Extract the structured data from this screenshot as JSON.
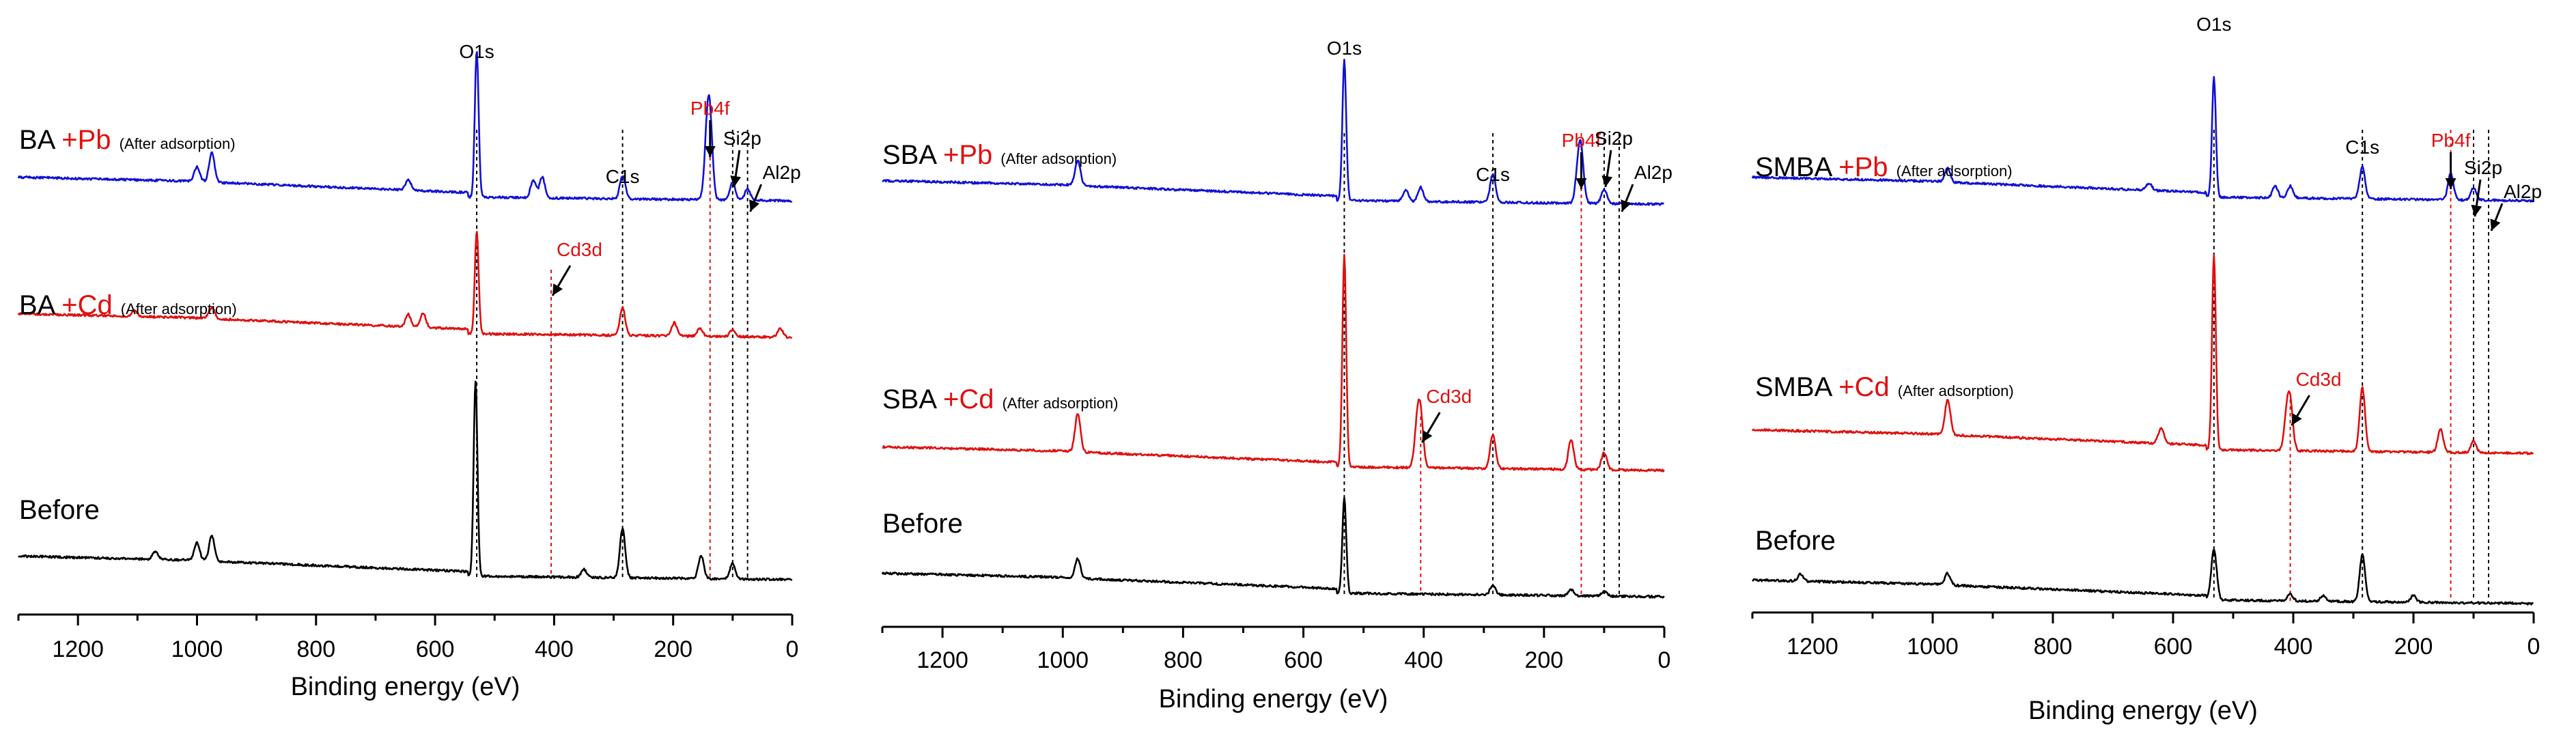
{
  "colors": {
    "blue": "#1010d8",
    "red": "#e01010",
    "black": "#000000",
    "redText": "#e01010"
  },
  "chart_data": [
    {
      "type": "line",
      "title": "",
      "xlabel": "Binding energy (eV)",
      "ylabel": "",
      "xlim": [
        1300,
        0
      ],
      "xticks": [
        1200,
        1000,
        800,
        600,
        400,
        200,
        0
      ],
      "series": [
        {
          "name": "BA +Pb (After adsorption)",
          "prefix": "BA",
          "metal": "+Pb",
          "note": "(After adsorption)",
          "color": "blue",
          "peaks": [
            {
              "pos": 530,
              "amp": 1.0
            },
            {
              "pos": 285,
              "amp": 0.16
            },
            {
              "pos": 138,
              "amp": 0.45
            },
            {
              "pos": 143,
              "amp": 0.38
            },
            {
              "pos": 100,
              "amp": 0.12
            },
            {
              "pos": 75,
              "amp": 0.08
            },
            {
              "pos": 420,
              "amp": 0.14
            },
            {
              "pos": 435,
              "amp": 0.12
            },
            {
              "pos": 975,
              "amp": 0.2
            },
            {
              "pos": 1000,
              "amp": 0.1
            },
            {
              "pos": 645,
              "amp": 0.07
            }
          ]
        },
        {
          "name": "BA +Cd (After adsorption)",
          "prefix": "BA",
          "metal": "+Cd",
          "note": "(After adsorption)",
          "color": "red",
          "peaks": [
            {
              "pos": 530,
              "amp": 1.0
            },
            {
              "pos": 285,
              "amp": 0.27
            },
            {
              "pos": 198,
              "amp": 0.13
            },
            {
              "pos": 155,
              "amp": 0.08
            },
            {
              "pos": 100,
              "amp": 0.07
            },
            {
              "pos": 620,
              "amp": 0.14
            },
            {
              "pos": 645,
              "amp": 0.12
            },
            {
              "pos": 975,
              "amp": 0.11
            },
            {
              "pos": 1105,
              "amp": 0.06
            },
            {
              "pos": 20,
              "amp": 0.08
            }
          ]
        },
        {
          "name": "Before",
          "prefix": "Before",
          "metal": "",
          "note": "",
          "color": "black",
          "peaks": [
            {
              "pos": 532,
              "amp": 1.0
            },
            {
              "pos": 285,
              "amp": 0.25
            },
            {
              "pos": 153,
              "amp": 0.12
            },
            {
              "pos": 100,
              "amp": 0.08
            },
            {
              "pos": 975,
              "amp": 0.13
            },
            {
              "pos": 1000,
              "amp": 0.09
            },
            {
              "pos": 1070,
              "amp": 0.04
            },
            {
              "pos": 350,
              "amp": 0.04
            }
          ]
        }
      ],
      "annotations": [
        {
          "label": "O1s",
          "pos": 530,
          "color": "black"
        },
        {
          "label": "C1s",
          "pos": 285,
          "color": "black"
        },
        {
          "label": "Pb4f",
          "pos": 138,
          "color": "red"
        },
        {
          "label": "Si2p",
          "pos": 100,
          "color": "black"
        },
        {
          "label": "Al2p",
          "pos": 75,
          "color": "black"
        },
        {
          "label": "Cd3d",
          "pos": 405,
          "color": "red"
        }
      ]
    },
    {
      "type": "line",
      "title": "",
      "xlabel": "Binding energy (eV)",
      "ylabel": "",
      "xlim": [
        1300,
        0
      ],
      "xticks": [
        1200,
        1000,
        800,
        600,
        400,
        200,
        0
      ],
      "series": [
        {
          "name": "SBA +Pb (After adsorption)",
          "prefix": "SBA",
          "metal": "+Pb",
          "note": "(After adsorption)",
          "color": "blue",
          "peaks": [
            {
              "pos": 532,
              "amp": 1.0
            },
            {
              "pos": 285,
              "amp": 0.2
            },
            {
              "pos": 138,
              "amp": 0.3
            },
            {
              "pos": 143,
              "amp": 0.22
            },
            {
              "pos": 100,
              "amp": 0.1
            },
            {
              "pos": 975,
              "amp": 0.18
            },
            {
              "pos": 430,
              "amp": 0.08
            },
            {
              "pos": 405,
              "amp": 0.1
            }
          ]
        },
        {
          "name": "SBA +Cd (After adsorption)",
          "prefix": "SBA",
          "metal": "+Cd",
          "note": "(After adsorption)",
          "color": "red",
          "peaks": [
            {
              "pos": 532,
              "amp": 1.0
            },
            {
              "pos": 405,
              "amp": 0.22
            },
            {
              "pos": 411,
              "amp": 0.18
            },
            {
              "pos": 285,
              "amp": 0.16
            },
            {
              "pos": 155,
              "amp": 0.14
            },
            {
              "pos": 100,
              "amp": 0.08
            },
            {
              "pos": 975,
              "amp": 0.18
            }
          ]
        },
        {
          "name": "Before",
          "prefix": "Before",
          "metal": "",
          "note": "",
          "color": "black",
          "peaks": [
            {
              "pos": 532,
              "amp": 1.0
            },
            {
              "pos": 285,
              "amp": 0.1
            },
            {
              "pos": 155,
              "amp": 0.06
            },
            {
              "pos": 100,
              "amp": 0.05
            },
            {
              "pos": 975,
              "amp": 0.2
            }
          ]
        }
      ],
      "annotations": [
        {
          "label": "O1s",
          "pos": 532,
          "color": "black"
        },
        {
          "label": "C1s",
          "pos": 285,
          "color": "black"
        },
        {
          "label": "Pb4f",
          "pos": 138,
          "color": "red"
        },
        {
          "label": "Si2p",
          "pos": 100,
          "color": "black"
        },
        {
          "label": "Al2p",
          "pos": 75,
          "color": "black"
        },
        {
          "label": "Cd3d",
          "pos": 405,
          "color": "red"
        }
      ]
    },
    {
      "type": "line",
      "title": "",
      "xlabel": "Binding energy (eV)",
      "ylabel": "",
      "xlim": [
        1300,
        0
      ],
      "xticks": [
        1200,
        1000,
        800,
        600,
        400,
        200,
        0
      ],
      "series": [
        {
          "name": "SMBA +Pb (After adsorption)",
          "prefix": "SMBA",
          "metal": "+Pb",
          "note": "(After adsorption)",
          "color": "blue",
          "peaks": [
            {
              "pos": 532,
              "amp": 1.0
            },
            {
              "pos": 285,
              "amp": 0.27
            },
            {
              "pos": 138,
              "amp": 0.22
            },
            {
              "pos": 100,
              "amp": 0.1
            },
            {
              "pos": 405,
              "amp": 0.1
            },
            {
              "pos": 430,
              "amp": 0.1
            },
            {
              "pos": 975,
              "amp": 0.12
            },
            {
              "pos": 640,
              "amp": 0.06
            }
          ]
        },
        {
          "name": "SMBA +Cd (After adsorption)",
          "prefix": "SMBA",
          "metal": "+Cd",
          "note": "(After adsorption)",
          "color": "red",
          "peaks": [
            {
              "pos": 532,
              "amp": 1.0
            },
            {
              "pos": 405,
              "amp": 0.22
            },
            {
              "pos": 411,
              "amp": 0.16
            },
            {
              "pos": 285,
              "amp": 0.33
            },
            {
              "pos": 155,
              "amp": 0.12
            },
            {
              "pos": 100,
              "amp": 0.06
            },
            {
              "pos": 975,
              "amp": 0.18
            },
            {
              "pos": 620,
              "amp": 0.08
            }
          ]
        },
        {
          "name": "Before",
          "prefix": "Before",
          "metal": "",
          "note": "",
          "color": "black",
          "peaks": [
            {
              "pos": 532,
              "amp": 0.45
            },
            {
              "pos": 285,
              "amp": 0.42
            },
            {
              "pos": 405,
              "amp": 0.06
            },
            {
              "pos": 350,
              "amp": 0.05
            },
            {
              "pos": 200,
              "amp": 0.06
            },
            {
              "pos": 975,
              "amp": 0.1
            },
            {
              "pos": 1220,
              "amp": 0.06
            }
          ]
        }
      ],
      "annotations": [
        {
          "label": "O1s",
          "pos": 532,
          "color": "black"
        },
        {
          "label": "C1s",
          "pos": 285,
          "color": "black"
        },
        {
          "label": "Pb4f",
          "pos": 138,
          "color": "red"
        },
        {
          "label": "Si2p",
          "pos": 100,
          "color": "black"
        },
        {
          "label": "Al2p",
          "pos": 75,
          "color": "black"
        },
        {
          "label": "Cd3d",
          "pos": 405,
          "color": "red"
        }
      ]
    }
  ]
}
